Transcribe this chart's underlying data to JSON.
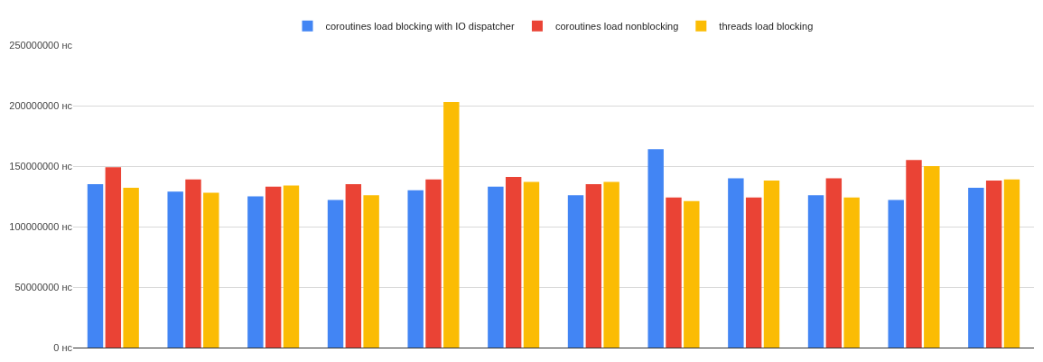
{
  "chart_data": {
    "type": "bar",
    "categories": [
      null,
      null,
      null,
      null,
      null,
      null,
      null,
      null,
      null,
      null,
      null,
      null
    ],
    "series": [
      {
        "name": "coroutines load blocking with IO dispatcher",
        "color": "#4285f4",
        "values": [
          135000000,
          129000000,
          125000000,
          122000000,
          130000000,
          133000000,
          126000000,
          164000000,
          140000000,
          126000000,
          122000000,
          132000000
        ]
      },
      {
        "name": "coroutines load nonblocking",
        "color": "#ea4335",
        "values": [
          149000000,
          139000000,
          133000000,
          135000000,
          139000000,
          141000000,
          135000000,
          124000000,
          124000000,
          140000000,
          155000000,
          138000000
        ]
      },
      {
        "name": "threads load blocking",
        "color": "#fbbc04",
        "values": [
          132000000,
          128000000,
          134000000,
          126000000,
          203000000,
          137000000,
          137000000,
          121000000,
          138000000,
          124000000,
          150000000,
          139000000
        ]
      }
    ],
    "ylim": [
      0,
      250000000
    ],
    "yticks": [
      {
        "value": 0,
        "label": "0 нс"
      },
      {
        "value": 50000000,
        "label": "50000000 нс"
      },
      {
        "value": 100000000,
        "label": "100000000 нс"
      },
      {
        "value": 150000000,
        "label": "150000000 нс"
      },
      {
        "value": 200000000,
        "label": "200000000 нс"
      },
      {
        "value": 250000000,
        "label": "250000000 нс"
      }
    ],
    "tick_labels": "y",
    "grid": "y",
    "legend": "top"
  }
}
